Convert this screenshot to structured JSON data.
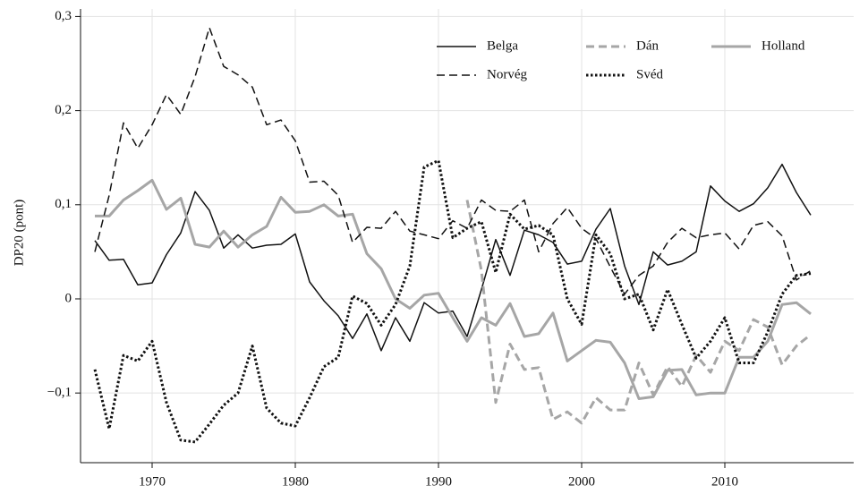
{
  "chart_data": {
    "type": "line",
    "ylabel": "DP20 (pont)",
    "x": [
      1966,
      1967,
      1968,
      1969,
      1970,
      1971,
      1972,
      1973,
      1974,
      1975,
      1976,
      1977,
      1978,
      1979,
      1980,
      1981,
      1982,
      1983,
      1984,
      1985,
      1986,
      1987,
      1988,
      1989,
      1990,
      1991,
      1992,
      1993,
      1994,
      1995,
      1996,
      1997,
      1998,
      1999,
      2000,
      2001,
      2002,
      2003,
      2004,
      2005,
      2006,
      2007,
      2008,
      2009,
      2010,
      2011,
      2012,
      2013,
      2014,
      2015,
      2016
    ],
    "xlim": [
      1965,
      2019
    ],
    "xticks": [
      1970,
      1980,
      1990,
      2000,
      2010
    ],
    "ylim": [
      -0.174,
      0.308
    ],
    "yticks": [
      {
        "value": -0.1,
        "label": "−0,1"
      },
      0,
      {
        "value": 0.1,
        "label": "0,1"
      },
      {
        "value": 0.2,
        "label": "0,2"
      },
      {
        "value": 0.3,
        "label": "0,3"
      }
    ],
    "grid": true,
    "legend": "upper right",
    "series": [
      {
        "name": "Belga",
        "color": "#111111",
        "linestyle": "solid",
        "linewidth": 1.5,
        "values": [
          0.062,
          0.041,
          0.042,
          0.015,
          0.017,
          0.047,
          0.07,
          0.114,
          0.094,
          0.054,
          0.068,
          0.054,
          0.057,
          0.058,
          0.069,
          0.018,
          -0.002,
          -0.018,
          -0.042,
          -0.016,
          -0.055,
          -0.02,
          -0.045,
          -0.004,
          -0.015,
          -0.013,
          -0.04,
          0.01,
          0.063,
          0.025,
          0.073,
          0.068,
          0.06,
          0.037,
          0.04,
          0.074,
          0.096,
          0.035,
          -0.006,
          0.05,
          0.036,
          0.04,
          0.05,
          0.12,
          0.104,
          0.093,
          0.101,
          0.118,
          0.143,
          0.113,
          0.089
        ]
      },
      {
        "name": "Dán",
        "color": "#a6a6a6",
        "linestyle": "dashed",
        "linewidth": 3,
        "values": [
          null,
          null,
          null,
          null,
          null,
          null,
          null,
          null,
          null,
          null,
          null,
          null,
          null,
          null,
          null,
          null,
          null,
          null,
          null,
          null,
          null,
          null,
          null,
          null,
          null,
          null,
          0.105,
          0.03,
          -0.11,
          -0.048,
          -0.075,
          -0.073,
          -0.128,
          -0.12,
          -0.132,
          -0.105,
          -0.118,
          -0.118,
          -0.068,
          -0.102,
          -0.072,
          -0.093,
          -0.06,
          -0.078,
          -0.045,
          -0.055,
          -0.022,
          -0.03,
          -0.07,
          -0.05,
          -0.038
        ]
      },
      {
        "name": "Holland",
        "color": "#a6a6a6",
        "linestyle": "solid",
        "linewidth": 3,
        "values": [
          0.088,
          0.088,
          0.105,
          0.115,
          0.126,
          0.095,
          0.107,
          0.058,
          0.055,
          0.072,
          0.055,
          0.068,
          0.077,
          0.108,
          0.092,
          0.093,
          0.1,
          0.088,
          0.09,
          0.048,
          0.032,
          0.0,
          -0.01,
          0.004,
          0.006,
          -0.02,
          -0.045,
          -0.02,
          -0.028,
          -0.005,
          -0.04,
          -0.037,
          -0.015,
          -0.066,
          -0.055,
          -0.044,
          -0.046,
          -0.068,
          -0.106,
          -0.104,
          -0.076,
          -0.075,
          -0.102,
          -0.1,
          -0.1,
          -0.062,
          -0.062,
          -0.045,
          -0.006,
          -0.004,
          -0.016
        ]
      },
      {
        "name": "Norvég",
        "color": "#111111",
        "linestyle": "dashed",
        "linewidth": 1.5,
        "values": [
          0.05,
          0.11,
          0.187,
          0.16,
          0.185,
          0.217,
          0.196,
          0.236,
          0.288,
          0.247,
          0.238,
          0.225,
          0.185,
          0.19,
          0.168,
          0.124,
          0.125,
          0.11,
          0.06,
          0.076,
          0.075,
          0.093,
          0.072,
          0.068,
          0.064,
          0.083,
          0.075,
          0.105,
          0.094,
          0.093,
          0.105,
          0.05,
          0.08,
          0.097,
          0.075,
          0.064,
          0.034,
          0.005,
          0.025,
          0.035,
          0.06,
          0.075,
          0.065,
          0.068,
          0.07,
          0.053,
          0.078,
          0.082,
          0.067,
          0.02,
          0.03
        ]
      },
      {
        "name": "Svéd",
        "color": "#111111",
        "linestyle": "dotted",
        "linewidth": 3,
        "values": [
          -0.075,
          -0.138,
          -0.06,
          -0.066,
          -0.045,
          -0.11,
          -0.15,
          -0.152,
          -0.133,
          -0.113,
          -0.1,
          -0.05,
          -0.116,
          -0.132,
          -0.135,
          -0.105,
          -0.072,
          -0.062,
          0.003,
          -0.005,
          -0.028,
          -0.006,
          0.035,
          0.14,
          0.147,
          0.065,
          0.075,
          0.082,
          0.028,
          0.09,
          0.074,
          0.078,
          0.068,
          0.0,
          -0.027,
          0.068,
          0.048,
          0.0,
          0.005,
          -0.033,
          0.01,
          -0.027,
          -0.063,
          -0.045,
          -0.02,
          -0.068,
          -0.068,
          -0.035,
          0.005,
          0.025,
          0.027
        ]
      }
    ]
  }
}
